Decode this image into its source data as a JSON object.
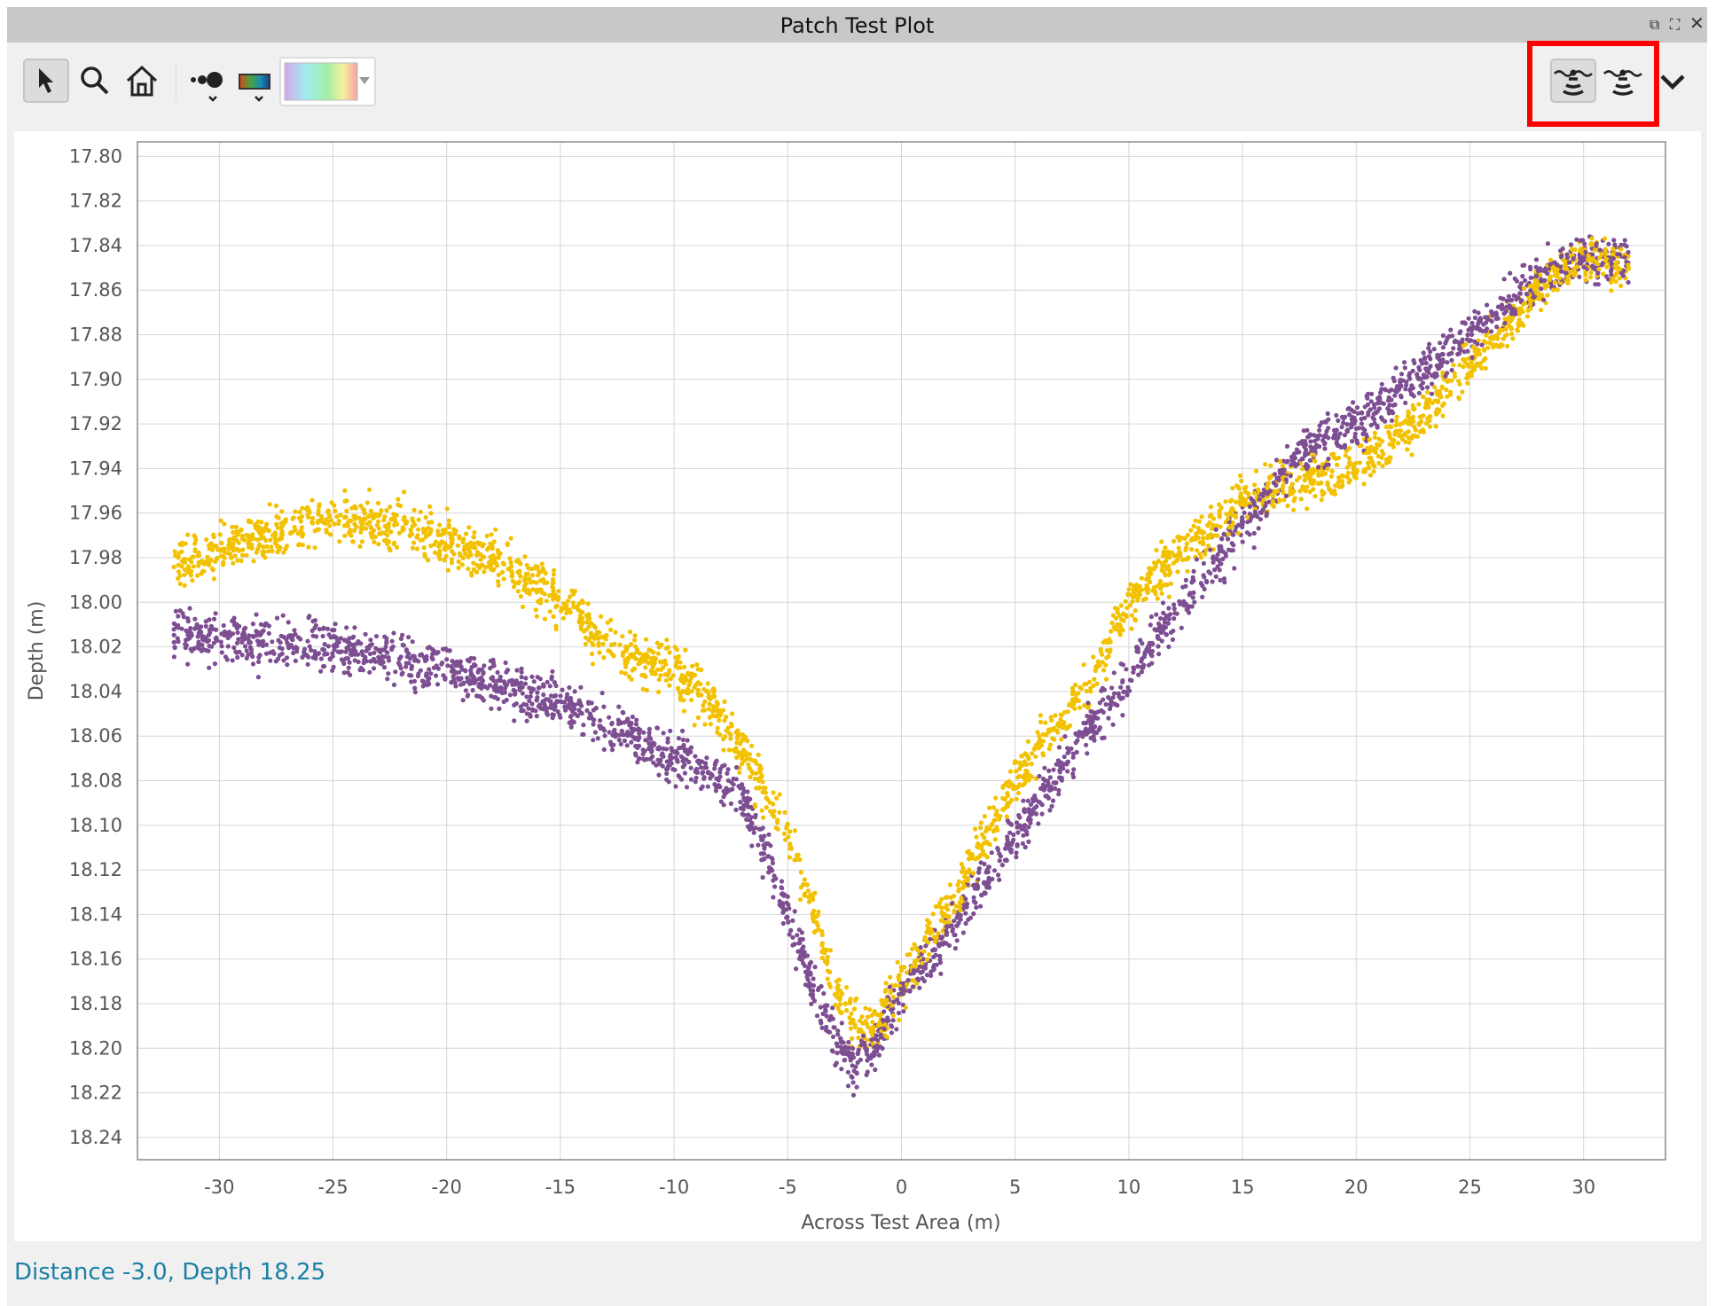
{
  "window": {
    "title": "Patch Test Plot",
    "buttons": [
      "restore-icon",
      "fullscreen-icon",
      "close-icon"
    ]
  },
  "toolbar": {
    "tools": [
      "select-arrow-icon",
      "zoom-magnifier-icon",
      "home-icon",
      "point-size-icon",
      "color-ramp-icon",
      "color-palette-dropdown"
    ],
    "right_tools": [
      "sonar-swath-icon-active",
      "sonar-swath-icon",
      "chevron-down-icon"
    ],
    "highlight_color": "#ff0000"
  },
  "status": {
    "text": "Distance -3.0, Depth 18.25"
  },
  "chart_data": {
    "type": "scatter",
    "title": "",
    "xlabel": "Across Test Area (m)",
    "ylabel": "Depth (m)",
    "xlim": [
      -33.6,
      33.6
    ],
    "ylim": [
      18.25,
      17.7935
    ],
    "y_inverted": true,
    "grid": true,
    "legend": "none",
    "xticks": [
      "-30",
      "-25",
      "-20",
      "-15",
      "-10",
      "-5",
      "0",
      "5",
      "10",
      "15",
      "20",
      "25",
      "30"
    ],
    "yticks": [
      "17.80",
      "17.82",
      "17.84",
      "17.86",
      "17.88",
      "17.90",
      "17.92",
      "17.94",
      "17.96",
      "17.98",
      "18.00",
      "18.02",
      "18.04",
      "18.06",
      "18.08",
      "18.10",
      "18.12",
      "18.14",
      "18.16",
      "18.18",
      "18.20",
      "18.22",
      "18.24"
    ],
    "series": [
      {
        "color": "#7d4e92",
        "spread": 0.009,
        "x": [
          -32,
          -28,
          -25,
          -22,
          -20,
          -17,
          -15,
          -12,
          -10,
          -8,
          -7,
          -6,
          -5,
          -4,
          -3,
          -2,
          -1,
          0,
          2,
          5,
          8,
          10,
          12,
          15,
          18,
          20,
          22,
          25,
          28,
          30,
          32
        ],
        "y": [
          18.015,
          18.018,
          18.02,
          18.025,
          18.03,
          18.04,
          18.045,
          18.06,
          18.07,
          18.08,
          18.09,
          18.11,
          18.14,
          18.17,
          18.195,
          18.21,
          18.195,
          18.175,
          18.15,
          18.105,
          18.06,
          18.035,
          18.005,
          17.965,
          17.93,
          17.92,
          17.905,
          17.88,
          17.855,
          17.845,
          17.845
        ]
      },
      {
        "color": "#f2c100",
        "spread": 0.009,
        "x": [
          -32,
          -30,
          -28,
          -25,
          -22,
          -20,
          -18,
          -15,
          -12,
          -10,
          -8,
          -6,
          -5,
          -4,
          -3,
          -2,
          -1,
          0,
          2,
          5,
          8,
          10,
          12,
          15,
          18,
          20,
          22,
          25,
          28,
          30,
          32
        ],
        "y": [
          17.985,
          17.975,
          17.97,
          17.962,
          17.965,
          17.972,
          17.98,
          18.0,
          18.025,
          18.03,
          18.05,
          18.085,
          18.105,
          18.135,
          18.17,
          18.19,
          18.19,
          18.17,
          18.14,
          18.08,
          18.04,
          18.0,
          17.98,
          17.955,
          17.945,
          17.94,
          17.925,
          17.895,
          17.86,
          17.845,
          17.85
        ]
      }
    ]
  }
}
